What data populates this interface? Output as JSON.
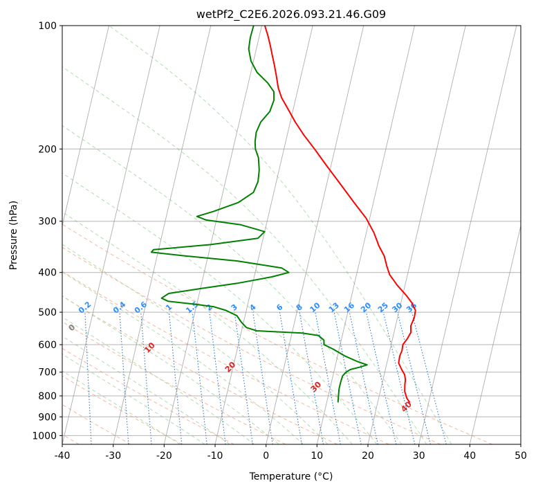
{
  "chart_data": {
    "type": "line",
    "subtype": "skew-t log-p diagram",
    "title": "wetPf2_C2E6.2026.093.21.46.G09",
    "xlabel": "Temperature (°C)",
    "ylabel": "Pressure (hPa)",
    "xlim": [
      -40,
      50
    ],
    "ylim": [
      1050,
      100
    ],
    "y_scale": "log (inverted)",
    "x_ticks": [
      -40,
      -30,
      -20,
      -10,
      0,
      10,
      20,
      30,
      40,
      50
    ],
    "y_ticks": [
      100,
      200,
      300,
      400,
      500,
      600,
      700,
      800,
      900,
      1000
    ],
    "grid": "on",
    "series": [
      {
        "kind": "temperature",
        "color": "#ff0000",
        "points": [
          [
            830,
            26.3
          ],
          [
            810,
            25.5
          ],
          [
            780,
            24.8
          ],
          [
            750,
            24.5
          ],
          [
            730,
            24.4
          ],
          [
            710,
            24.0
          ],
          [
            690,
            23.2
          ],
          [
            665,
            22.3
          ],
          [
            640,
            22.2
          ],
          [
            620,
            22.4
          ],
          [
            600,
            22.3
          ],
          [
            580,
            22.9
          ],
          [
            560,
            23.3
          ],
          [
            540,
            23.0
          ],
          [
            515,
            23.3
          ],
          [
            495,
            23.2
          ],
          [
            475,
            22.2
          ],
          [
            455,
            20.7
          ],
          [
            430,
            18.5
          ],
          [
            405,
            16.5
          ],
          [
            385,
            15.5
          ],
          [
            365,
            14.6
          ],
          [
            345,
            13.1
          ],
          [
            320,
            11.5
          ],
          [
            295,
            9.3
          ],
          [
            270,
            6.2
          ],
          [
            245,
            2.9
          ],
          [
            220,
            -0.8
          ],
          [
            200,
            -4.0
          ],
          [
            185,
            -6.7
          ],
          [
            172,
            -9.0
          ],
          [
            160,
            -11.0
          ],
          [
            150,
            -12.8
          ],
          [
            142,
            -13.9
          ],
          [
            133,
            -14.8
          ],
          [
            125,
            -15.7
          ],
          [
            118,
            -16.6
          ],
          [
            112,
            -17.4
          ],
          [
            106,
            -18.3
          ],
          [
            100,
            -19.4
          ]
        ]
      },
      {
        "kind": "dewpoint",
        "color": "#008000",
        "points": [
          [
            830,
            12.2
          ],
          [
            800,
            12.0
          ],
          [
            770,
            11.8
          ],
          [
            740,
            11.8
          ],
          [
            715,
            11.9
          ],
          [
            700,
            12.4
          ],
          [
            690,
            13.1
          ],
          [
            680,
            15.0
          ],
          [
            672,
            16.2
          ],
          [
            660,
            14.2
          ],
          [
            640,
            11.5
          ],
          [
            615,
            8.8
          ],
          [
            600,
            6.8
          ],
          [
            585,
            6.6
          ],
          [
            570,
            5.3
          ],
          [
            562,
            2.0
          ],
          [
            555,
            -7.0
          ],
          [
            545,
            -9.2
          ],
          [
            528,
            -10.5
          ],
          [
            510,
            -11.6
          ],
          [
            495,
            -14.0
          ],
          [
            485,
            -16.5
          ],
          [
            478,
            -20.5
          ],
          [
            470,
            -25.8
          ],
          [
            462,
            -27.2
          ],
          [
            450,
            -26.0
          ],
          [
            438,
            -20.0
          ],
          [
            425,
            -13.0
          ],
          [
            410,
            -6.5
          ],
          [
            400,
            -3.4
          ],
          [
            390,
            -5.0
          ],
          [
            375,
            -14.0
          ],
          [
            364,
            -25.0
          ],
          [
            357,
            -31.3
          ],
          [
            352,
            -31.0
          ],
          [
            342,
            -20.0
          ],
          [
            330,
            -11.0
          ],
          [
            318,
            -10.0
          ],
          [
            306,
            -15.0
          ],
          [
            298,
            -22.0
          ],
          [
            292,
            -24.0
          ],
          [
            284,
            -21.0
          ],
          [
            270,
            -16.5
          ],
          [
            255,
            -14.0
          ],
          [
            240,
            -13.6
          ],
          [
            225,
            -13.9
          ],
          [
            210,
            -14.6
          ],
          [
            200,
            -15.6
          ],
          [
            192,
            -16.0
          ],
          [
            182,
            -16.2
          ],
          [
            172,
            -15.8
          ],
          [
            162,
            -14.5
          ],
          [
            152,
            -14.2
          ],
          [
            145,
            -14.6
          ],
          [
            138,
            -16.2
          ],
          [
            130,
            -18.8
          ],
          [
            122,
            -20.5
          ],
          [
            114,
            -21.5
          ],
          [
            107,
            -21.7
          ],
          [
            100,
            -21.6
          ]
        ]
      }
    ],
    "dry_adiabats_C": [
      -100,
      -90,
      -80,
      -70,
      -60,
      -50,
      -40,
      -30,
      -20,
      -10,
      0,
      10,
      20,
      30,
      40
    ],
    "moist_adiabats_C": [
      -20,
      -15,
      -10,
      -5,
      0,
      5,
      10,
      15,
      20,
      25,
      30,
      35
    ],
    "mixing_ratio_lines_gkg": [
      "0.1",
      "0.2",
      "0.4",
      "0.6",
      "1",
      "1.5",
      "2",
      "3",
      "4",
      "6",
      "8",
      "10",
      "13",
      "16",
      "20",
      "25",
      "30",
      "36"
    ],
    "colors": {
      "temperature": "#ff0000",
      "dewpoint": "#008000",
      "dry_adiabat": "#f4a582",
      "moist_adiabat": "#a6d8a6",
      "mixing_ratio": "#1f77d4",
      "isotherm": "#9a9a9a",
      "cold_label": "#1f6fa8",
      "warm_label": "#d62728",
      "zero_label": "#808080",
      "mixing_label": "#2b8cff"
    }
  }
}
